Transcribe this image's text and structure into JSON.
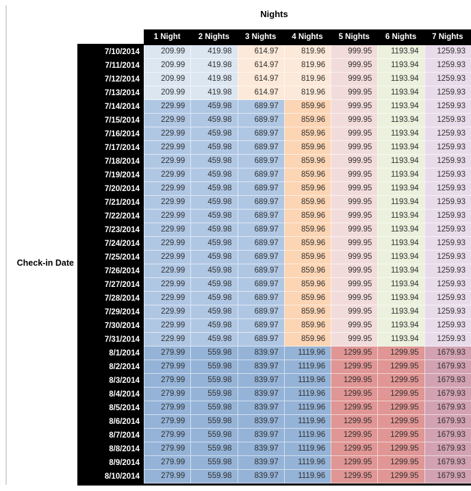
{
  "palette": {
    "header_bg": "#000000",
    "header_text": "#ffffff",
    "value_text": "#303030",
    "left_rule": "#d6d6d6",
    "group_a": [
      "#dce6f1",
      "#dce6f1",
      "#fde9d9",
      "#fde9d9",
      "#f2dcdb",
      "#ebf1dd",
      "#e9dcea"
    ],
    "group_b": [
      "#b0c7e4",
      "#b0c7e4",
      "#b0c7e4",
      "#fcd5b4",
      "#f2dcdb",
      "#ebf1dd",
      "#e9dcea"
    ],
    "group_c": [
      "#95b3d7",
      "#95b3d7",
      "#95b3d7",
      "#95b3d7",
      "#e09694",
      "#e09694",
      "#d2a2b2"
    ]
  },
  "chart_data": {
    "type": "table",
    "title": "Nights",
    "row_axis_label": "Check-in Date",
    "columns": [
      "1 Night",
      "2 Nights",
      "3 Nights",
      "4 Nights",
      "5 Nights",
      "6 Nights",
      "7 Nights"
    ],
    "rows": [
      {
        "date": "7/10/2014",
        "group": "a",
        "values": [
          "209.99",
          "419.98",
          "614.97",
          "819.96",
          "999.95",
          "1193.94",
          "1259.93"
        ]
      },
      {
        "date": "7/11/2014",
        "group": "a",
        "values": [
          "209.99",
          "419.98",
          "614.97",
          "819.96",
          "999.95",
          "1193.94",
          "1259.93"
        ]
      },
      {
        "date": "7/12/2014",
        "group": "a",
        "values": [
          "209.99",
          "419.98",
          "614.97",
          "819.96",
          "999.95",
          "1193.94",
          "1259.93"
        ]
      },
      {
        "date": "7/13/2014",
        "group": "a",
        "values": [
          "209.99",
          "419.98",
          "614.97",
          "819.96",
          "999.95",
          "1193.94",
          "1259.93"
        ]
      },
      {
        "date": "7/14/2014",
        "group": "b",
        "values": [
          "229.99",
          "459.98",
          "689.97",
          "859.96",
          "999.95",
          "1193.94",
          "1259.93"
        ]
      },
      {
        "date": "7/15/2014",
        "group": "b",
        "values": [
          "229.99",
          "459.98",
          "689.97",
          "859.96",
          "999.95",
          "1193.94",
          "1259.93"
        ]
      },
      {
        "date": "7/16/2014",
        "group": "b",
        "values": [
          "229.99",
          "459.98",
          "689.97",
          "859.96",
          "999.95",
          "1193.94",
          "1259.93"
        ]
      },
      {
        "date": "7/17/2014",
        "group": "b",
        "values": [
          "229.99",
          "459.98",
          "689.97",
          "859.96",
          "999.95",
          "1193.94",
          "1259.93"
        ]
      },
      {
        "date": "7/18/2014",
        "group": "b",
        "values": [
          "229.99",
          "459.98",
          "689.97",
          "859.96",
          "999.95",
          "1193.94",
          "1259.93"
        ]
      },
      {
        "date": "7/19/2014",
        "group": "b",
        "values": [
          "229.99",
          "459.98",
          "689.97",
          "859.96",
          "999.95",
          "1193.94",
          "1259.93"
        ]
      },
      {
        "date": "7/20/2014",
        "group": "b",
        "values": [
          "229.99",
          "459.98",
          "689.97",
          "859.96",
          "999.95",
          "1193.94",
          "1259.93"
        ]
      },
      {
        "date": "7/21/2014",
        "group": "b",
        "values": [
          "229.99",
          "459.98",
          "689.97",
          "859.96",
          "999.95",
          "1193.94",
          "1259.93"
        ]
      },
      {
        "date": "7/22/2014",
        "group": "b",
        "values": [
          "229.99",
          "459.98",
          "689.97",
          "859.96",
          "999.95",
          "1193.94",
          "1259.93"
        ]
      },
      {
        "date": "7/23/2014",
        "group": "b",
        "values": [
          "229.99",
          "459.98",
          "689.97",
          "859.96",
          "999.95",
          "1193.94",
          "1259.93"
        ]
      },
      {
        "date": "7/24/2014",
        "group": "b",
        "values": [
          "229.99",
          "459.98",
          "689.97",
          "859.96",
          "999.95",
          "1193.94",
          "1259.93"
        ]
      },
      {
        "date": "7/25/2014",
        "group": "b",
        "values": [
          "229.99",
          "459.98",
          "689.97",
          "859.96",
          "999.95",
          "1193.94",
          "1259.93"
        ]
      },
      {
        "date": "7/26/2014",
        "group": "b",
        "values": [
          "229.99",
          "459.98",
          "689.97",
          "859.96",
          "999.95",
          "1193.94",
          "1259.93"
        ]
      },
      {
        "date": "7/27/2014",
        "group": "b",
        "values": [
          "229.99",
          "459.98",
          "689.97",
          "859.96",
          "999.95",
          "1193.94",
          "1259.93"
        ]
      },
      {
        "date": "7/28/2014",
        "group": "b",
        "values": [
          "229.99",
          "459.98",
          "689.97",
          "859.96",
          "999.95",
          "1193.94",
          "1259.93"
        ]
      },
      {
        "date": "7/29/2014",
        "group": "b",
        "values": [
          "229.99",
          "459.98",
          "689.97",
          "859.96",
          "999.95",
          "1193.94",
          "1259.93"
        ]
      },
      {
        "date": "7/30/2014",
        "group": "b",
        "values": [
          "229.99",
          "459.98",
          "689.97",
          "859.96",
          "999.95",
          "1193.94",
          "1259.93"
        ]
      },
      {
        "date": "7/31/2014",
        "group": "b",
        "values": [
          "229.99",
          "459.98",
          "689.97",
          "859.96",
          "999.95",
          "1193.94",
          "1259.93"
        ]
      },
      {
        "date": "8/1/2014",
        "group": "c",
        "values": [
          "279.99",
          "559.98",
          "839.97",
          "1119.96",
          "1299.95",
          "1299.95",
          "1679.93"
        ]
      },
      {
        "date": "8/2/2014",
        "group": "c",
        "values": [
          "279.99",
          "559.98",
          "839.97",
          "1119.96",
          "1299.95",
          "1299.95",
          "1679.93"
        ]
      },
      {
        "date": "8/3/2014",
        "group": "c",
        "values": [
          "279.99",
          "559.98",
          "839.97",
          "1119.96",
          "1299.95",
          "1299.95",
          "1679.93"
        ]
      },
      {
        "date": "8/4/2014",
        "group": "c",
        "values": [
          "279.99",
          "559.98",
          "839.97",
          "1119.96",
          "1299.95",
          "1299.95",
          "1679.93"
        ]
      },
      {
        "date": "8/5/2014",
        "group": "c",
        "values": [
          "279.99",
          "559.98",
          "839.97",
          "1119.96",
          "1299.95",
          "1299.95",
          "1679.93"
        ]
      },
      {
        "date": "8/6/2014",
        "group": "c",
        "values": [
          "279.99",
          "559.98",
          "839.97",
          "1119.96",
          "1299.95",
          "1299.95",
          "1679.93"
        ]
      },
      {
        "date": "8/7/2014",
        "group": "c",
        "values": [
          "279.99",
          "559.98",
          "839.97",
          "1119.96",
          "1299.95",
          "1299.95",
          "1679.93"
        ]
      },
      {
        "date": "8/8/2014",
        "group": "c",
        "values": [
          "279.99",
          "559.98",
          "839.97",
          "1119.96",
          "1299.95",
          "1299.95",
          "1679.93"
        ]
      },
      {
        "date": "8/9/2014",
        "group": "c",
        "values": [
          "279.99",
          "559.98",
          "839.97",
          "1119.96",
          "1299.95",
          "1299.95",
          "1679.93"
        ]
      },
      {
        "date": "8/10/2014",
        "group": "c",
        "values": [
          "279.99",
          "559.98",
          "839.97",
          "1119.96",
          "1299.95",
          "1299.95",
          "1679.93"
        ]
      }
    ]
  }
}
